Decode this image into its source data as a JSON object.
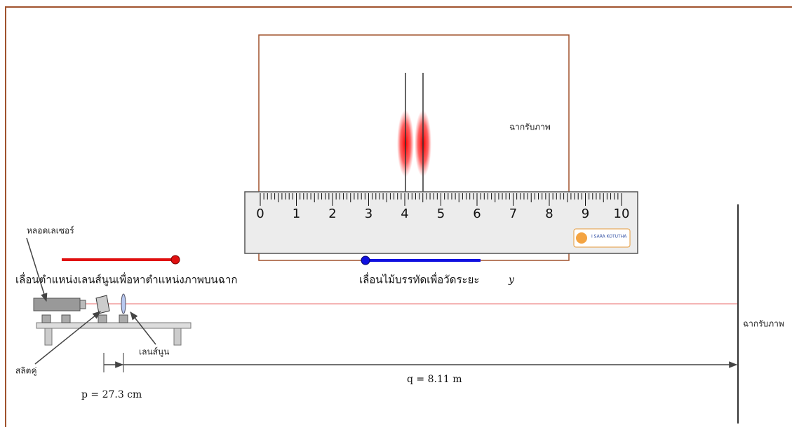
{
  "screen_view": {
    "label": "ฉากรับภาพ"
  },
  "ruler": {
    "numbers": [
      0,
      1,
      2,
      3,
      4,
      5,
      6,
      7,
      8,
      9,
      10
    ],
    "logo": "I SARA KOTUTHA"
  },
  "sliders": {
    "lens_label": "เลื่อนตำแหน่งเลนส์นูนเพื่อหาตำแหน่งภาพบนฉาก",
    "ruler_label": "เลื่อนไม้บรรทัดเพื่อวัดระยะ",
    "ruler_var": "y"
  },
  "apparatus": {
    "laser": "หลอดเลเซอร์",
    "slit": "สลิตคู่",
    "lens": "เลนส์นูน",
    "screen": "ฉากรับภาพ"
  },
  "distances": {
    "p": "p = 27.3 cm",
    "q": "q = 8.11 m"
  }
}
